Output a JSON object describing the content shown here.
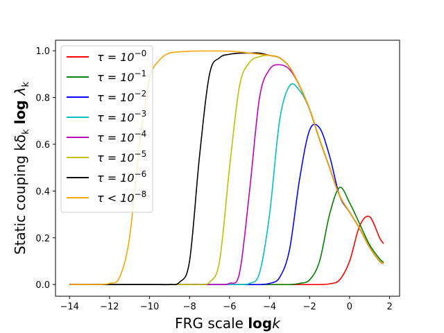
{
  "chart_data": {
    "type": "line",
    "xlabel": {
      "prefix": "FRG scale ",
      "bold": "log",
      "suffix": "k"
    },
    "ylabel": {
      "prefix": "Static couping  kδ",
      "sub1": "k",
      "bold": " log ",
      "lambda": "λ",
      "sub2": "k"
    },
    "xlim": [
      -14.7,
      2.5
    ],
    "ylim": [
      -0.05,
      1.045
    ],
    "xticks": [
      -14,
      -12,
      -10,
      -8,
      -6,
      -4,
      -2,
      0,
      2
    ],
    "xtick_labels": [
      "−14",
      "−12",
      "−10",
      "−8",
      "−6",
      "−4",
      "−2",
      "0",
      "2"
    ],
    "yticks": [
      0.0,
      0.2,
      0.4,
      0.6,
      0.8,
      1.0
    ],
    "ytick_labels": [
      "0.0",
      "0.2",
      "0.4",
      "0.6",
      "0.8",
      "1.0"
    ],
    "grid": false,
    "legend_position": "upper-left",
    "x": [
      -14.0,
      -13.5,
      -13.0,
      -12.5,
      -12.0,
      -11.5,
      -11.0,
      -10.5,
      -10.0,
      -9.5,
      -9.0,
      -8.5,
      -8.0,
      -7.5,
      -7.0,
      -6.5,
      -6.0,
      -5.5,
      -5.0,
      -4.5,
      -4.0,
      -3.5,
      -3.0,
      -2.5,
      -2.0,
      -1.5,
      -1.0,
      -0.5,
      0.0,
      0.5,
      1.0,
      1.5,
      1.7
    ],
    "series": [
      {
        "name": "τ = 10⁻⁰",
        "base": "τ = 10",
        "exp": "−0",
        "color": "#ff0000",
        "values": [
          0,
          0,
          0,
          0,
          0,
          0,
          0,
          0,
          0,
          0,
          0,
          0,
          0,
          0,
          0,
          0,
          0,
          0,
          0,
          0,
          0,
          0,
          0,
          0,
          0,
          0,
          0.003,
          0.02,
          0.1,
          0.25,
          0.29,
          0.2,
          0.175
        ]
      },
      {
        "name": "τ = 10⁻¹",
        "base": "τ = 10",
        "exp": "−1",
        "color": "#008000",
        "values": [
          0,
          0,
          0,
          0,
          0,
          0,
          0,
          0,
          0,
          0,
          0,
          0,
          0,
          0,
          0,
          0,
          0,
          0,
          0,
          0,
          0,
          0,
          0,
          0.005,
          0.02,
          0.1,
          0.3,
          0.415,
          0.35,
          0.26,
          0.17,
          0.11,
          0.095
        ]
      },
      {
        "name": "τ = 10⁻²",
        "base": "τ = 10",
        "exp": "−2",
        "color": "#0000ff",
        "values": [
          0,
          0,
          0,
          0,
          0,
          0,
          0,
          0,
          0,
          0,
          0,
          0,
          0,
          0,
          0,
          0,
          0,
          0,
          0,
          0,
          0.005,
          0.03,
          0.15,
          0.45,
          0.66,
          0.67,
          0.55,
          0.38,
          0.31,
          0.24,
          0.16,
          0.1,
          0.09
        ]
      },
      {
        "name": "τ = 10⁻³",
        "base": "τ = 10",
        "exp": "−3",
        "color": "#00bfbf",
        "values": [
          0,
          0,
          0,
          0,
          0,
          0,
          0,
          0,
          0,
          0,
          0,
          0,
          0,
          0,
          0,
          0,
          0,
          0,
          0.005,
          0.05,
          0.3,
          0.7,
          0.85,
          0.83,
          0.75,
          0.62,
          0.5,
          0.38,
          0.31,
          0.24,
          0.16,
          0.1,
          0.09
        ]
      },
      {
        "name": "τ = 10⁻⁴",
        "base": "τ = 10",
        "exp": "−4",
        "color": "#bf00bf",
        "values": [
          0,
          0,
          0,
          0,
          0,
          0,
          0,
          0,
          0,
          0,
          0,
          0,
          0,
          0,
          0,
          0,
          0.005,
          0.05,
          0.4,
          0.8,
          0.92,
          0.94,
          0.92,
          0.85,
          0.75,
          0.62,
          0.5,
          0.38,
          0.31,
          0.24,
          0.16,
          0.1,
          0.09
        ]
      },
      {
        "name": "τ = 10⁻⁵",
        "base": "τ = 10",
        "exp": "−5",
        "color": "#bfbf00",
        "values": [
          0,
          0,
          0,
          0,
          0,
          0,
          0,
          0,
          0,
          0,
          0,
          0,
          0,
          0,
          0.01,
          0.1,
          0.5,
          0.85,
          0.95,
          0.975,
          0.98,
          0.97,
          0.93,
          0.85,
          0.75,
          0.62,
          0.5,
          0.38,
          0.31,
          0.24,
          0.16,
          0.1,
          0.09
        ]
      },
      {
        "name": "τ = 10⁻⁶",
        "base": "τ = 10",
        "exp": "−6",
        "color": "#000000",
        "values": [
          0,
          0,
          0,
          0,
          0,
          0,
          0,
          0,
          0,
          0,
          0,
          0.01,
          0.1,
          0.55,
          0.9,
          0.97,
          0.985,
          0.99,
          0.99,
          0.99,
          0.98,
          0.97,
          0.93,
          0.85,
          0.75,
          0.62,
          0.5,
          0.38,
          0.31,
          0.24,
          0.16,
          0.1,
          0.09
        ]
      },
      {
        "name": "τ < 10⁻⁸",
        "base": "τ < 10",
        "exp": "−8",
        "color": "#ffa500",
        "values": [
          0,
          0,
          0,
          0,
          0.005,
          0.03,
          0.2,
          0.6,
          0.88,
          0.96,
          0.99,
          0.995,
          0.998,
          0.999,
          0.999,
          0.999,
          0.998,
          0.995,
          0.99,
          0.985,
          0.98,
          0.97,
          0.93,
          0.85,
          0.75,
          0.62,
          0.5,
          0.38,
          0.31,
          0.24,
          0.16,
          0.1,
          0.09
        ]
      }
    ]
  }
}
